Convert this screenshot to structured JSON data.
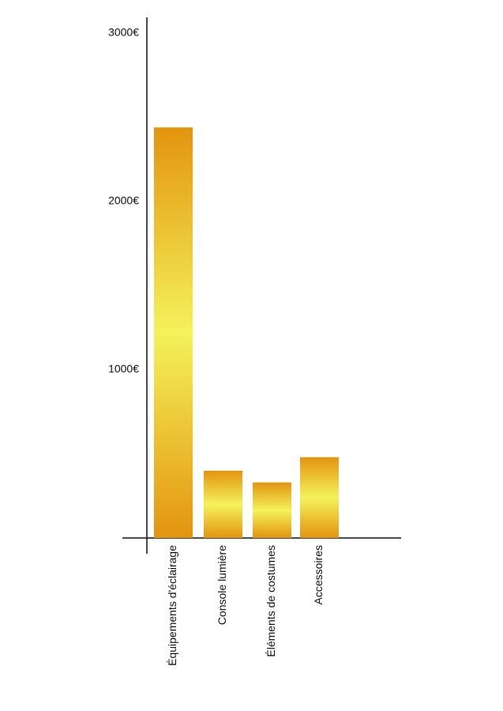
{
  "chart_data": {
    "type": "bar",
    "categories": [
      "Équipements d'éclairage",
      "Console lumière",
      "Éléments de costumes",
      "Accessoires"
    ],
    "values": [
      2440,
      400,
      330,
      480
    ],
    "color": "#e3940f",
    "ylim": [
      0,
      3000
    ],
    "yticks": [
      {
        "value": 1000,
        "label": "1000€"
      },
      {
        "value": 2000,
        "label": "2000€"
      },
      {
        "value": 3000,
        "label": "3000€"
      }
    ],
    "grid": false
  }
}
